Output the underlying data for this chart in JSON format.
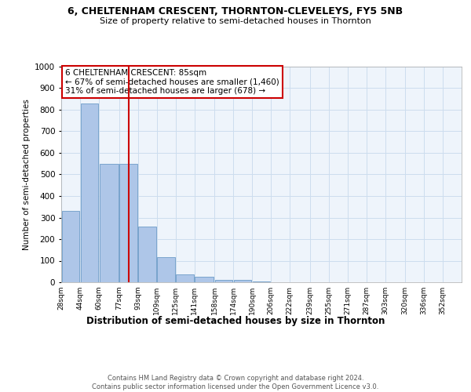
{
  "title1": "6, CHELTENHAM CRESCENT, THORNTON-CLEVELEYS, FY5 5NB",
  "title2": "Size of property relative to semi-detached houses in Thornton",
  "xlabel": "Distribution of semi-detached houses by size in Thornton",
  "ylabel": "Number of semi-detached properties",
  "footnote1": "Contains HM Land Registry data © Crown copyright and database right 2024.",
  "footnote2": "Contains public sector information licensed under the Open Government Licence v3.0.",
  "annotation_title": "6 CHELTENHAM CRESCENT: 85sqm",
  "annotation_line1": "← 67% of semi-detached houses are smaller (1,460)",
  "annotation_line2": "31% of semi-detached houses are larger (678) →",
  "property_size": 85,
  "bar_left_edges": [
    28,
    44,
    60,
    77,
    93,
    109,
    125,
    141,
    158,
    174,
    190,
    206,
    222,
    239,
    255,
    271,
    287,
    303,
    320,
    336
  ],
  "bar_widths": [
    16,
    16,
    17,
    16,
    16,
    16,
    16,
    17,
    16,
    16,
    16,
    16,
    17,
    16,
    16,
    16,
    16,
    17,
    16,
    16
  ],
  "bar_heights": [
    330,
    830,
    550,
    550,
    260,
    115,
    35,
    25,
    10,
    10,
    5,
    0,
    0,
    0,
    0,
    0,
    0,
    0,
    0,
    0
  ],
  "tick_labels": [
    "28sqm",
    "44sqm",
    "60sqm",
    "77sqm",
    "93sqm",
    "109sqm",
    "125sqm",
    "141sqm",
    "158sqm",
    "174sqm",
    "190sqm",
    "206sqm",
    "222sqm",
    "239sqm",
    "255sqm",
    "271sqm",
    "287sqm",
    "303sqm",
    "320sqm",
    "336sqm",
    "352sqm"
  ],
  "tick_positions": [
    28,
    44,
    60,
    77,
    93,
    109,
    125,
    141,
    158,
    174,
    190,
    206,
    222,
    239,
    255,
    271,
    287,
    303,
    320,
    336,
    352
  ],
  "bar_color": "#aec6e8",
  "bar_edge_color": "#5a8fc0",
  "vline_color": "#cc0000",
  "vline_x": 85,
  "ylim": [
    0,
    1000
  ],
  "yticks": [
    0,
    100,
    200,
    300,
    400,
    500,
    600,
    700,
    800,
    900,
    1000
  ],
  "grid_color": "#ccddee",
  "bg_color": "#eef4fb",
  "annotation_box_color": "#cc0000",
  "annotation_bg": "#ffffff"
}
